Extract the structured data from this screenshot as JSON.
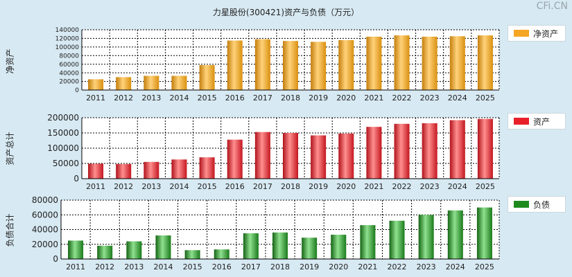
{
  "title": "力星股份(300421)资产与负债（万元）",
  "watermark": "CFi.CN",
  "chart_data": [
    {
      "type": "bar",
      "ylabel": "净资产",
      "legend": "净资产",
      "color": "#f5a623",
      "categories": [
        "2011",
        "2012",
        "2013",
        "2014",
        "2015",
        "2016",
        "2017",
        "2018",
        "2019",
        "2020",
        "2021",
        "2022",
        "2023",
        "2024",
        "2025"
      ],
      "values": [
        25000,
        30000,
        33000,
        33000,
        58000,
        115000,
        118000,
        114000,
        112000,
        116000,
        124000,
        127000,
        124000,
        125000,
        127000
      ],
      "ylim": [
        0,
        140000
      ],
      "yticks": [
        0,
        20000,
        40000,
        60000,
        80000,
        100000,
        120000,
        140000
      ],
      "grid": true,
      "legend_position": "top-right"
    },
    {
      "type": "bar",
      "ylabel": "资产总计",
      "legend": "资产",
      "color": "#e8202a",
      "categories": [
        "2011",
        "2012",
        "2013",
        "2014",
        "2015",
        "2016",
        "2017",
        "2018",
        "2019",
        "2020",
        "2021",
        "2022",
        "2023",
        "2024",
        "2025"
      ],
      "values": [
        49000,
        48000,
        55000,
        63000,
        70000,
        128000,
        153000,
        150000,
        142000,
        148000,
        170000,
        180000,
        182000,
        192000,
        196000
      ],
      "ylim": [
        0,
        200000
      ],
      "yticks": [
        0,
        50000,
        100000,
        150000,
        200000
      ],
      "grid": true,
      "legend_position": "top-right"
    },
    {
      "type": "bar",
      "ylabel": "负债合计",
      "legend": "负债",
      "color": "#1e8a1e",
      "categories": [
        "2011",
        "2012",
        "2013",
        "2014",
        "2015",
        "2016",
        "2017",
        "2018",
        "2019",
        "2020",
        "2021",
        "2022",
        "2023",
        "2024",
        "2025"
      ],
      "values": [
        25000,
        18000,
        24000,
        32000,
        12000,
        13000,
        35000,
        36000,
        29000,
        33000,
        46000,
        52000,
        60000,
        66000,
        70000
      ],
      "ylim": [
        0,
        80000
      ],
      "yticks": [
        0,
        20000,
        40000,
        60000,
        80000
      ],
      "grid": true,
      "legend_position": "top-right"
    }
  ]
}
